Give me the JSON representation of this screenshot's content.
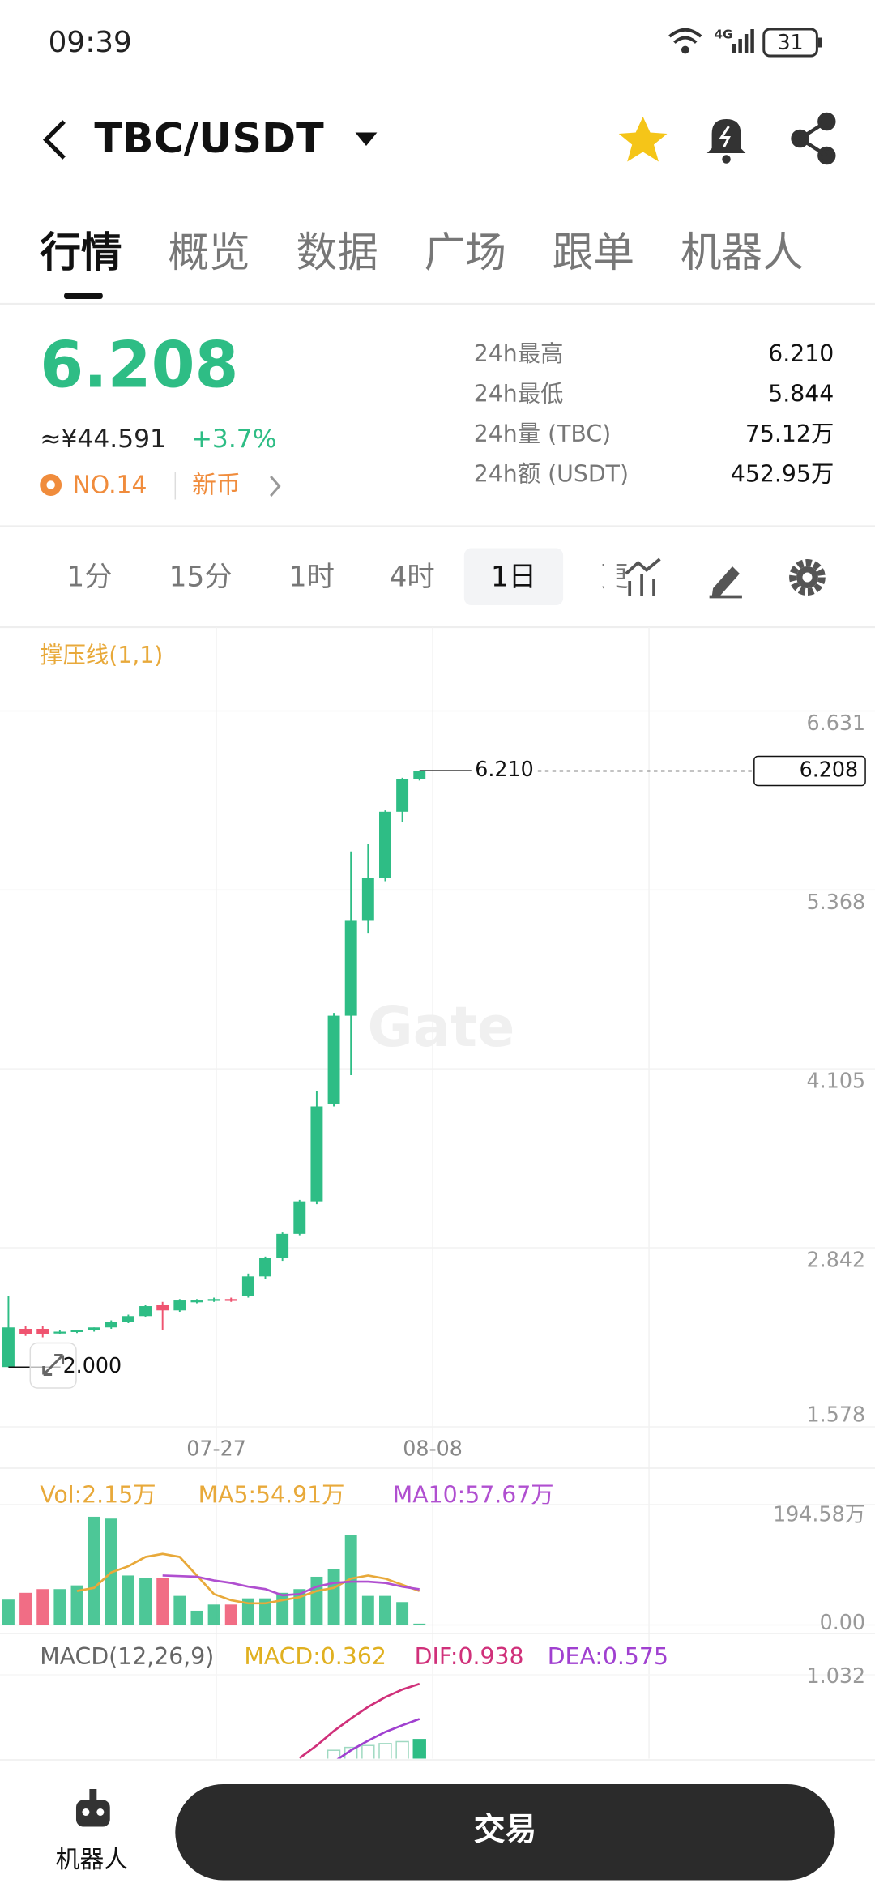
{
  "status_bar": {
    "time": "09:39",
    "network": "4G",
    "battery": "31"
  },
  "header": {
    "pair": "TBC/USDT"
  },
  "tabs": [
    "行情",
    "概览",
    "数据",
    "广场",
    "跟单",
    "机器人"
  ],
  "price": {
    "last": "6.208",
    "cny": "≈¥44.591",
    "change": "+3.7%",
    "rank": "NO.14",
    "tag": "新币"
  },
  "stats": [
    {
      "label": "24h最高",
      "value": "6.210"
    },
    {
      "label": "24h最低",
      "value": "5.844"
    },
    {
      "label": "24h量 (TBC)",
      "value": "75.12万"
    },
    {
      "label": "24h额 (USDT)",
      "value": "452.95万"
    }
  ],
  "intervals": [
    "1分",
    "15分",
    "1时",
    "4时",
    "1日",
    "更"
  ],
  "chart": {
    "type": "candlestick",
    "indicator_label": "撑压线(1,1)",
    "watermark": "Gate",
    "up_color": "#2ebd85",
    "down_color": "#ef5470",
    "ylim": [
      1.578,
      6.631
    ],
    "yticks": [
      1.578,
      2.842,
      4.105,
      5.368,
      6.631
    ],
    "x_labels": [
      "07-27",
      "08-08"
    ],
    "high_marker": "6.210",
    "low_marker": "2.000",
    "last_price_label": "6.208",
    "candles": [
      {
        "open": 2.0,
        "high": 2.5,
        "low": 2.0,
        "close": 2.28
      },
      {
        "open": 2.27,
        "high": 2.29,
        "low": 2.22,
        "close": 2.23
      },
      {
        "open": 2.27,
        "high": 2.29,
        "low": 2.21,
        "close": 2.23
      },
      {
        "open": 2.24,
        "high": 2.26,
        "low": 2.23,
        "close": 2.25
      },
      {
        "open": 2.25,
        "high": 2.26,
        "low": 2.24,
        "close": 2.26
      },
      {
        "open": 2.26,
        "high": 2.28,
        "low": 2.25,
        "close": 2.28
      },
      {
        "open": 2.28,
        "high": 2.33,
        "low": 2.27,
        "close": 2.32
      },
      {
        "open": 2.32,
        "high": 2.37,
        "low": 2.31,
        "close": 2.36
      },
      {
        "open": 2.36,
        "high": 2.44,
        "low": 2.35,
        "close": 2.43
      },
      {
        "open": 2.44,
        "high": 2.46,
        "low": 2.26,
        "close": 2.4
      },
      {
        "open": 2.4,
        "high": 2.48,
        "low": 2.39,
        "close": 2.47
      },
      {
        "open": 2.46,
        "high": 2.48,
        "low": 2.45,
        "close": 2.47
      },
      {
        "open": 2.47,
        "high": 2.49,
        "low": 2.46,
        "close": 2.48
      },
      {
        "open": 2.48,
        "high": 2.49,
        "low": 2.46,
        "close": 2.47
      },
      {
        "open": 2.5,
        "high": 2.66,
        "low": 2.49,
        "close": 2.64
      },
      {
        "open": 2.64,
        "high": 2.78,
        "low": 2.62,
        "close": 2.77
      },
      {
        "open": 2.77,
        "high": 2.95,
        "low": 2.75,
        "close": 2.94
      },
      {
        "open": 2.94,
        "high": 3.18,
        "low": 2.93,
        "close": 3.17
      },
      {
        "open": 3.17,
        "high": 3.95,
        "low": 3.15,
        "close": 3.84
      },
      {
        "open": 3.86,
        "high": 4.5,
        "low": 3.84,
        "close": 4.48
      },
      {
        "open": 4.48,
        "high": 5.64,
        "low": 4.06,
        "close": 5.15
      },
      {
        "open": 5.15,
        "high": 5.69,
        "low": 5.06,
        "close": 5.45
      },
      {
        "open": 5.45,
        "high": 5.93,
        "low": 5.43,
        "close": 5.92
      },
      {
        "open": 5.92,
        "high": 6.16,
        "low": 5.85,
        "close": 6.15
      },
      {
        "open": 6.15,
        "high": 6.21,
        "low": 6.14,
        "close": 6.208
      }
    ]
  },
  "volume": {
    "labels": [
      {
        "text": "Vol:2.15万",
        "color": "#e8a93a"
      },
      {
        "text": "MA5:54.91万",
        "color": "#e8a93a"
      },
      {
        "text": "MA10:57.67万",
        "color": "#b04fd0"
      }
    ],
    "ylim": [
      0,
      194.58
    ],
    "yticks": [
      {
        "value": 0,
        "label": "0.00"
      },
      {
        "value": 194.58,
        "label": "194.58万"
      }
    ],
    "values": [
      41,
      52,
      58,
      58,
      64,
      175,
      172,
      80,
      76,
      76,
      47,
      23,
      33,
      33,
      43,
      43,
      52,
      58,
      78,
      91,
      146,
      47,
      47,
      37,
      2.15
    ],
    "ma5": [
      null,
      null,
      null,
      null,
      55,
      60,
      85,
      95,
      110,
      115,
      110,
      80,
      50,
      40,
      35,
      35,
      40,
      45,
      55,
      60,
      75,
      80,
      75,
      65,
      54.91
    ],
    "ma10": [
      null,
      null,
      null,
      null,
      null,
      null,
      null,
      null,
      null,
      80,
      79,
      78,
      72,
      68,
      62,
      58,
      48,
      50,
      62,
      68,
      70,
      70,
      68,
      62,
      57.67
    ],
    "ma5_color": "#e8a93a",
    "ma10_color": "#b04fd0"
  },
  "macd": {
    "labels": [
      {
        "text": "MACD(12,26,9)",
        "color": "#666666"
      },
      {
        "text": "MACD:0.362",
        "color": "#e0b020"
      },
      {
        "text": "DIF:0.938",
        "color": "#d0307a"
      },
      {
        "text": "DEA:0.575",
        "color": "#a040d0"
      }
    ],
    "ylim": [
      0,
      1.032
    ],
    "yticks": [
      1.032
    ],
    "dif": [
      null,
      null,
      null,
      null,
      null,
      null,
      null,
      null,
      null,
      null,
      null,
      null,
      null,
      null,
      null,
      null,
      null,
      0.17,
      0.3,
      0.45,
      0.58,
      0.7,
      0.8,
      0.88,
      0.938
    ],
    "dea": [
      null,
      null,
      null,
      null,
      null,
      null,
      null,
      null,
      null,
      null,
      null,
      null,
      null,
      null,
      null,
      null,
      null,
      null,
      null,
      0.13,
      0.25,
      0.35,
      0.44,
      0.51,
      0.575
    ],
    "hist": [
      null,
      null,
      null,
      null,
      null,
      null,
      null,
      null,
      null,
      null,
      null,
      null,
      null,
      null,
      null,
      null,
      null,
      null,
      null,
      0.25,
      0.28,
      0.3,
      0.32,
      0.34,
      0.362
    ],
    "dif_color": "#d0307a",
    "dea_color": "#a040d0"
  },
  "bottom_bar": {
    "robot": "机器人",
    "trade": "交易"
  }
}
